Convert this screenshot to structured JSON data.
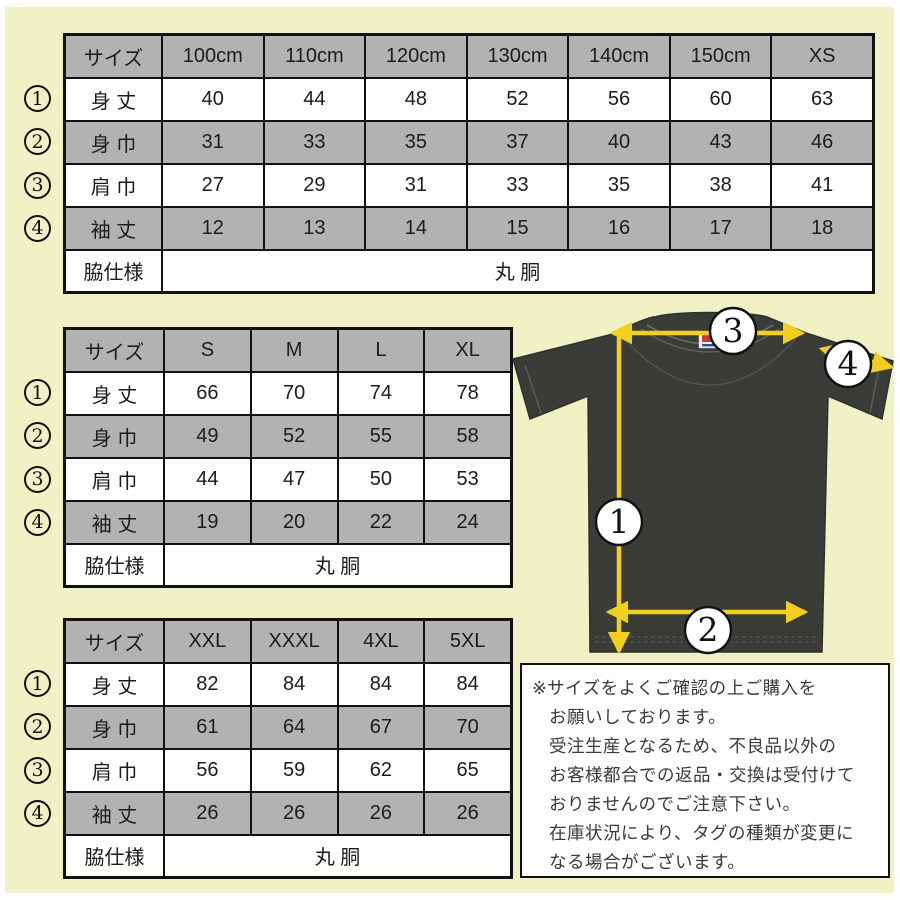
{
  "page": {
    "bg": "#f0f2c6",
    "frame": "#ffffff",
    "accent_yellow": "#f2ce1e",
    "table_gray": "#b2b2b2",
    "shirt_color": "#3a3d37"
  },
  "tables": [
    {
      "header": [
        "サイズ",
        "100cm",
        "110cm",
        "120cm",
        "130cm",
        "140cm",
        "150cm",
        "XS"
      ],
      "rows": [
        {
          "num": "1",
          "label": "身 丈",
          "values": [
            "40",
            "44",
            "48",
            "52",
            "56",
            "60",
            "63"
          ]
        },
        {
          "num": "2",
          "label": "身 巾",
          "values": [
            "31",
            "33",
            "35",
            "37",
            "40",
            "43",
            "46"
          ]
        },
        {
          "num": "3",
          "label": "肩 巾",
          "values": [
            "27",
            "29",
            "31",
            "33",
            "35",
            "38",
            "41"
          ]
        },
        {
          "num": "4",
          "label": "袖 丈",
          "values": [
            "12",
            "13",
            "14",
            "15",
            "16",
            "17",
            "18"
          ]
        }
      ],
      "footer": {
        "label": "脇仕様",
        "value": "丸 胴"
      }
    },
    {
      "header": [
        "サイズ",
        "S",
        "M",
        "L",
        "XL"
      ],
      "rows": [
        {
          "num": "1",
          "label": "身 丈",
          "values": [
            "66",
            "70",
            "74",
            "78"
          ]
        },
        {
          "num": "2",
          "label": "身 巾",
          "values": [
            "49",
            "52",
            "55",
            "58"
          ]
        },
        {
          "num": "3",
          "label": "肩 巾",
          "values": [
            "44",
            "47",
            "50",
            "53"
          ]
        },
        {
          "num": "4",
          "label": "袖 丈",
          "values": [
            "19",
            "20",
            "22",
            "24"
          ]
        }
      ],
      "footer": {
        "label": "脇仕様",
        "value": "丸 胴"
      }
    },
    {
      "header": [
        "サイズ",
        "XXL",
        "XXXL",
        "4XL",
        "5XL"
      ],
      "rows": [
        {
          "num": "1",
          "label": "身 丈",
          "values": [
            "82",
            "84",
            "84",
            "84"
          ]
        },
        {
          "num": "2",
          "label": "身 巾",
          "values": [
            "61",
            "64",
            "67",
            "70"
          ]
        },
        {
          "num": "3",
          "label": "肩 巾",
          "values": [
            "56",
            "59",
            "62",
            "65"
          ]
        },
        {
          "num": "4",
          "label": "袖 丈",
          "values": [
            "26",
            "26",
            "26",
            "26"
          ]
        }
      ],
      "footer": {
        "label": "脇仕様",
        "value": "丸 胴"
      }
    }
  ],
  "diagram": {
    "markers": {
      "m1": "1",
      "m2": "2",
      "m3": "3",
      "m4": "4"
    }
  },
  "note": {
    "lines": [
      "※サイズをよくご確認の上ご購入を",
      "お願いしております。",
      "受注生産となるため、不良品以外の",
      "お客様都合での返品・交換は受付けて",
      "おりませんのでご注意下さい。",
      "在庫状況により、タグの種類が変更に",
      "なる場合がございます。"
    ]
  }
}
